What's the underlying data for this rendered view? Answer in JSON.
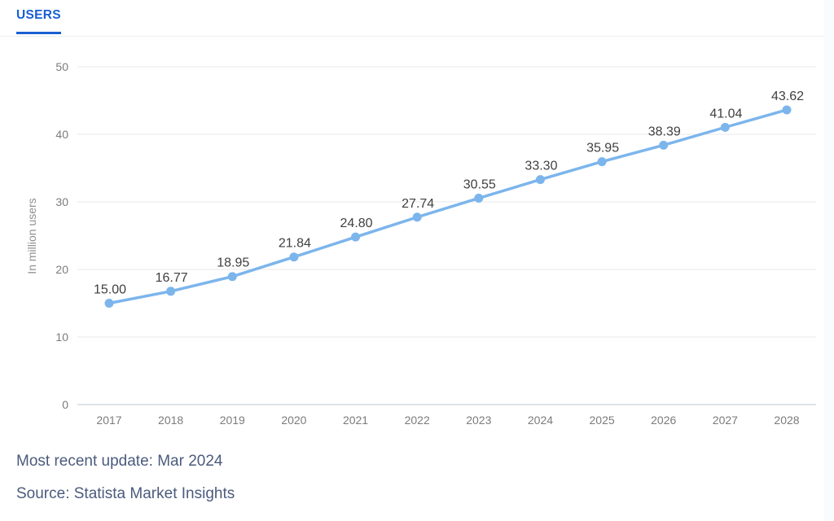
{
  "tab": {
    "label": "USERS"
  },
  "chart_data": {
    "type": "line",
    "title": "",
    "categories": [
      "2017",
      "2018",
      "2019",
      "2020",
      "2021",
      "2022",
      "2023",
      "2024",
      "2025",
      "2026",
      "2027",
      "2028"
    ],
    "values": [
      15.0,
      16.77,
      18.95,
      21.84,
      24.8,
      27.74,
      30.55,
      33.3,
      35.95,
      38.39,
      41.04,
      43.62
    ],
    "point_labels": [
      "15.00",
      "16.77",
      "18.95",
      "21.84",
      "24.80",
      "27.74",
      "30.55",
      "33.30",
      "35.95",
      "38.39",
      "41.04",
      "43.62"
    ],
    "xlabel": "",
    "ylabel": "In million users",
    "ylim": [
      0,
      50
    ],
    "yticks": [
      0,
      10,
      20,
      30,
      40,
      50
    ],
    "grid": true,
    "legend_position": "none",
    "series_name": "Users",
    "series_color": "#7cb5ec"
  },
  "footer": {
    "most_recent_update": "Most recent update: Mar 2024",
    "source": "Source: Statista Market Insights"
  },
  "colors": {
    "accent_blue": "#1a5fd4",
    "series_blue": "#7cb5ec",
    "footer_text": "#4b5b7d",
    "tick_label": "#7b7b7b",
    "data_label": "#404040",
    "gridline": "#e8e8e8",
    "axis_line": "#d4d8e4"
  }
}
